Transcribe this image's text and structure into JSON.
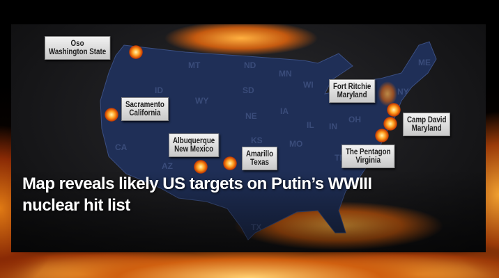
{
  "headline": "Map reveals likely US targets on Putin’s WWIII nuclear hit list",
  "map": {
    "targets": [
      {
        "line1": "Oso",
        "line2": "Washington State"
      },
      {
        "line1": "Sacramento",
        "line2": "California"
      },
      {
        "line1": "Albuquerque",
        "line2": "New Mexico"
      },
      {
        "line1": "Amarillo",
        "line2": "Texas"
      },
      {
        "line1": "Fort Ritchie",
        "line2": "Maryland"
      },
      {
        "line1": "Camp David",
        "line2": "Maryland"
      },
      {
        "line1": "The Pentagon",
        "line2": "Virginia"
      }
    ],
    "states": [
      "MT",
      "ND",
      "MN",
      "ID",
      "SD",
      "WY",
      "WI",
      "NE",
      "IA",
      "IL",
      "IN",
      "OH",
      "CA",
      "KS",
      "MO",
      "AZ",
      "TN",
      "TX",
      "NY",
      "ME"
    ],
    "colors": {
      "map_fill": "#1f2f57",
      "fire": "#e07a14",
      "label_bg": "#e6e6e6"
    }
  }
}
